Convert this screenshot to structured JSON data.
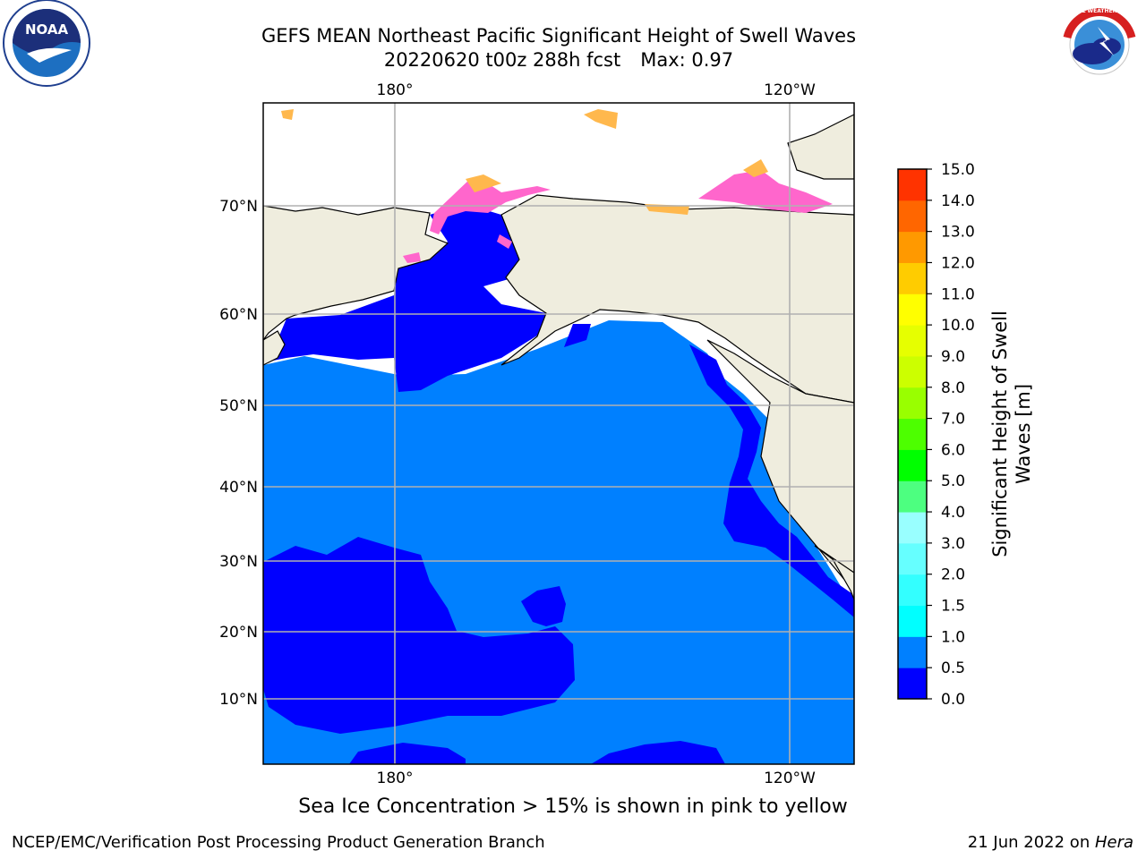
{
  "title": {
    "line1": "GEFS MEAN Northeast Pacific Significant Height of Swell Waves",
    "run": "20220620 t00z 288h fcst",
    "max": "Max: 0.97"
  },
  "map": {
    "projection": "cylindrical",
    "lon_ticks": [
      "180°",
      "120°W"
    ],
    "lat_ticks": [
      "70°N",
      "60°N",
      "50°N",
      "40°N",
      "30°N",
      "20°N",
      "10°N"
    ],
    "grid": true,
    "colors": {
      "land": "#efedde",
      "ocean_0_05": "#0000ff",
      "ocean_05_10": "#0080ff",
      "ice_pink": "#ff66cc",
      "ice_orange": "#ffb84d",
      "no_data": "#ffffff",
      "gridline": "#b0b0b0"
    }
  },
  "colorbar": {
    "label": "Significant Height of Swell Waves [m]",
    "label_line1": "Significant Height of Swell",
    "label_line2": "Waves [m]",
    "ticks": [
      "15.0",
      "14.0",
      "13.0",
      "12.0",
      "11.0",
      "10.0",
      "9.0",
      "8.0",
      "7.0",
      "6.0",
      "5.0",
      "4.0",
      "3.0",
      "2.0",
      "1.5",
      "1.0",
      "0.5",
      "0.0"
    ],
    "colors_bottom_to_top": [
      "#0000ff",
      "#0080ff",
      "#00ffff",
      "#33ffff",
      "#66ffff",
      "#99ffff",
      "#4dff80",
      "#00ff00",
      "#4dff00",
      "#99ff00",
      "#ccff00",
      "#e6ff00",
      "#ffff00",
      "#ffcc00",
      "#ff9900",
      "#ff6600",
      "#ff3300"
    ]
  },
  "caption": "Sea Ice Concentration > 15% is shown in pink to yellow",
  "footer": {
    "left": "NCEP/EMC/Verification Post Processing Product Generation Branch",
    "date": "21 Jun 2022 on ",
    "host": "Hera"
  },
  "logos": {
    "left": "NOAA",
    "right": "NATIONAL WEATHER SERVICE"
  }
}
